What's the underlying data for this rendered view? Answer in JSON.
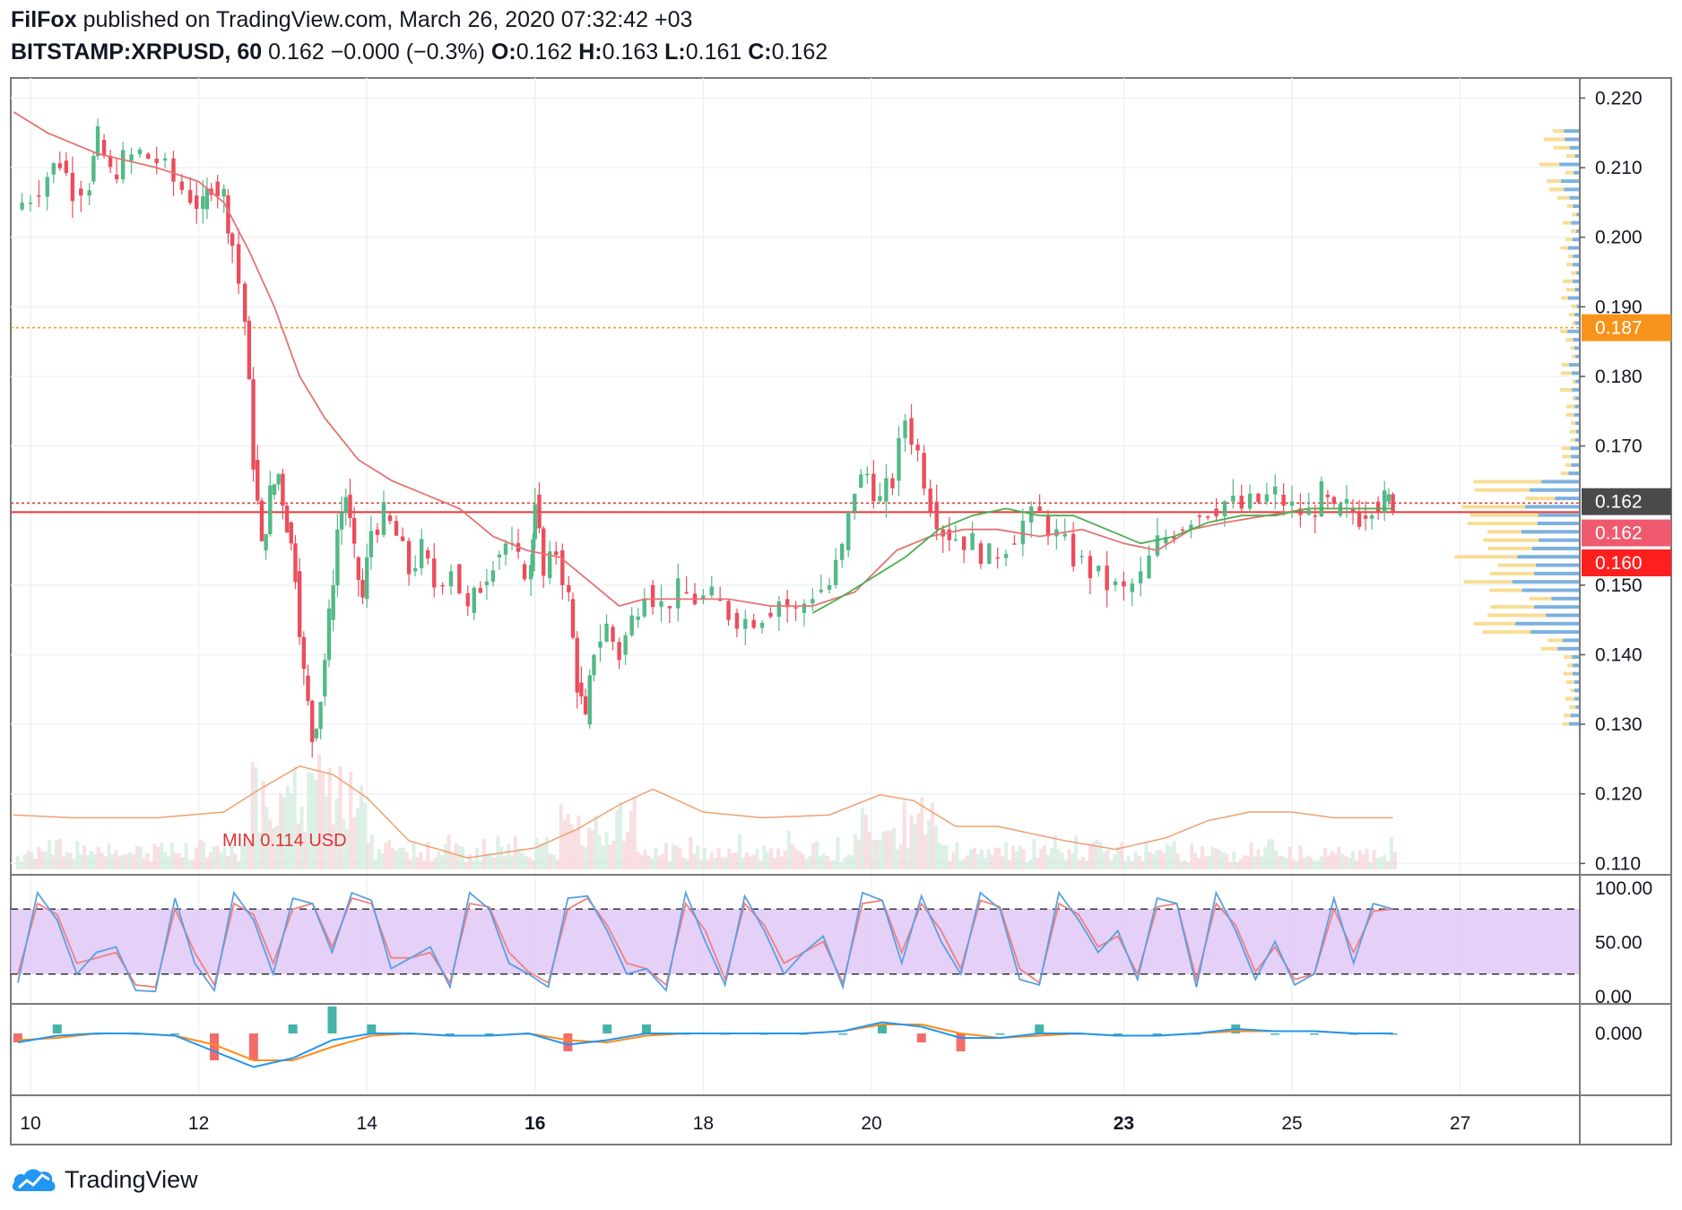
{
  "header": {
    "author": "FilFox",
    "published_text": "published on TradingView.com, March 26, 2020 07:32:42 +03",
    "symbol": "BITSTAMP:XRPUSD, 60",
    "last": "0.162",
    "change": "−0.000 (−0.3%)",
    "o_label": "O:",
    "o_value": "0.162",
    "h_label": "H:",
    "h_value": "0.163",
    "l_label": "L:",
    "l_value": "0.161",
    "c_label": "C:",
    "c_value": "0.162"
  },
  "logo": {
    "text": "TradingView",
    "icon": "tradingview-cloud-icon"
  },
  "chart_data": {
    "type": "candlestick",
    "symbol": "BITSTAMP:XRPUSD",
    "interval": "60",
    "x_tick_labels": [
      {
        "label": "10",
        "day": 10,
        "bold": false
      },
      {
        "label": "12",
        "day": 12,
        "bold": false
      },
      {
        "label": "14",
        "day": 14,
        "bold": false
      },
      {
        "label": "16",
        "day": 16,
        "bold": true
      },
      {
        "label": "18",
        "day": 18,
        "bold": false
      },
      {
        "label": "20",
        "day": 20,
        "bold": false
      },
      {
        "label": "23",
        "day": 23,
        "bold": true
      },
      {
        "label": "25",
        "day": 25,
        "bold": false
      },
      {
        "label": "27",
        "day": 27,
        "bold": false
      }
    ],
    "price_axis": {
      "ticks": [
        "0.220",
        "0.210",
        "0.200",
        "0.190",
        "0.180",
        "0.170",
        "0.150",
        "0.140",
        "0.130",
        "0.120",
        "0.110"
      ],
      "range": [
        0.1085,
        0.2225
      ]
    },
    "price_series": [
      [
        9.8,
        0.204
      ],
      [
        10.0,
        0.206
      ],
      [
        10.2,
        0.209
      ],
      [
        10.35,
        0.211
      ],
      [
        10.5,
        0.207
      ],
      [
        10.7,
        0.208
      ],
      [
        10.8,
        0.214
      ],
      [
        10.95,
        0.209
      ],
      [
        11.1,
        0.211
      ],
      [
        11.3,
        0.212
      ],
      [
        11.5,
        0.211
      ],
      [
        11.7,
        0.208
      ],
      [
        11.9,
        0.206
      ],
      [
        12.05,
        0.204
      ],
      [
        12.15,
        0.208
      ],
      [
        12.3,
        0.206
      ],
      [
        12.4,
        0.199
      ],
      [
        12.55,
        0.188
      ],
      [
        12.65,
        0.168
      ],
      [
        12.75,
        0.155
      ],
      [
        12.85,
        0.163
      ],
      [
        12.95,
        0.166
      ],
      [
        13.05,
        0.159
      ],
      [
        13.15,
        0.152
      ],
      [
        13.25,
        0.137
      ],
      [
        13.35,
        0.128
      ],
      [
        13.45,
        0.134
      ],
      [
        13.55,
        0.145
      ],
      [
        13.65,
        0.158
      ],
      [
        13.75,
        0.163
      ],
      [
        13.85,
        0.154
      ],
      [
        13.95,
        0.148
      ],
      [
        14.05,
        0.158
      ],
      [
        14.2,
        0.16
      ],
      [
        14.35,
        0.157
      ],
      [
        14.5,
        0.152
      ],
      [
        14.65,
        0.155
      ],
      [
        14.8,
        0.15
      ],
      [
        15.0,
        0.153
      ],
      [
        15.2,
        0.146
      ],
      [
        15.35,
        0.15
      ],
      [
        15.5,
        0.154
      ],
      [
        15.65,
        0.156
      ],
      [
        15.8,
        0.153
      ],
      [
        15.95,
        0.152
      ],
      [
        16.0,
        0.163
      ],
      [
        16.1,
        0.151
      ],
      [
        16.25,
        0.155
      ],
      [
        16.4,
        0.148
      ],
      [
        16.5,
        0.136
      ],
      [
        16.6,
        0.13
      ],
      [
        16.7,
        0.141
      ],
      [
        16.85,
        0.144
      ],
      [
        17.0,
        0.14
      ],
      [
        17.15,
        0.145
      ],
      [
        17.3,
        0.15
      ],
      [
        17.5,
        0.147
      ],
      [
        17.7,
        0.149
      ],
      [
        17.9,
        0.148
      ],
      [
        18.1,
        0.148
      ],
      [
        18.3,
        0.146
      ],
      [
        18.5,
        0.145
      ],
      [
        18.7,
        0.146
      ],
      [
        18.9,
        0.148
      ],
      [
        19.1,
        0.146
      ],
      [
        19.3,
        0.149
      ],
      [
        19.5,
        0.15
      ],
      [
        19.65,
        0.155
      ],
      [
        19.8,
        0.164
      ],
      [
        19.95,
        0.166
      ],
      [
        20.1,
        0.162
      ],
      [
        20.25,
        0.165
      ],
      [
        20.4,
        0.174
      ],
      [
        20.55,
        0.169
      ],
      [
        20.7,
        0.162
      ],
      [
        20.85,
        0.158
      ],
      [
        21.0,
        0.157
      ],
      [
        21.2,
        0.156
      ],
      [
        21.4,
        0.154
      ],
      [
        21.6,
        0.156
      ],
      [
        21.8,
        0.159
      ],
      [
        22.0,
        0.16
      ],
      [
        22.2,
        0.157
      ],
      [
        22.4,
        0.154
      ],
      [
        22.6,
        0.152
      ],
      [
        22.8,
        0.15
      ],
      [
        23.0,
        0.149
      ],
      [
        23.2,
        0.151
      ],
      [
        23.4,
        0.156
      ],
      [
        23.6,
        0.158
      ],
      [
        23.8,
        0.16
      ],
      [
        24.0,
        0.161
      ],
      [
        24.2,
        0.162
      ],
      [
        24.4,
        0.161
      ],
      [
        24.6,
        0.162
      ],
      [
        24.8,
        0.163
      ],
      [
        25.0,
        0.161
      ],
      [
        25.2,
        0.16
      ],
      [
        25.35,
        0.163
      ],
      [
        25.5,
        0.16
      ],
      [
        25.65,
        0.161
      ],
      [
        25.8,
        0.16
      ],
      [
        25.95,
        0.162
      ],
      [
        26.1,
        0.162
      ],
      [
        26.2,
        0.162
      ]
    ],
    "moving_average_red": [
      [
        9.8,
        0.218
      ],
      [
        10.2,
        0.215
      ],
      [
        10.8,
        0.212
      ],
      [
        11.5,
        0.21
      ],
      [
        12.0,
        0.208
      ],
      [
        12.3,
        0.205
      ],
      [
        12.6,
        0.198
      ],
      [
        12.9,
        0.19
      ],
      [
        13.2,
        0.18
      ],
      [
        13.5,
        0.174
      ],
      [
        13.9,
        0.168
      ],
      [
        14.3,
        0.165
      ],
      [
        14.7,
        0.163
      ],
      [
        15.1,
        0.161
      ],
      [
        15.5,
        0.157
      ],
      [
        15.9,
        0.155
      ],
      [
        16.3,
        0.154
      ],
      [
        16.7,
        0.15
      ],
      [
        17.0,
        0.147
      ],
      [
        17.3,
        0.148
      ],
      [
        17.8,
        0.148
      ],
      [
        18.3,
        0.148
      ],
      [
        18.8,
        0.147
      ],
      [
        19.3,
        0.147
      ],
      [
        19.8,
        0.149
      ],
      [
        20.3,
        0.155
      ],
      [
        20.7,
        0.157
      ],
      [
        21.1,
        0.158
      ],
      [
        21.5,
        0.158
      ],
      [
        22.0,
        0.157
      ],
      [
        22.5,
        0.158
      ],
      [
        23.0,
        0.156
      ],
      [
        23.4,
        0.155
      ],
      [
        23.8,
        0.158
      ],
      [
        24.2,
        0.159
      ],
      [
        24.7,
        0.16
      ],
      [
        25.2,
        0.161
      ],
      [
        25.6,
        0.161
      ],
      [
        26.0,
        0.161
      ],
      [
        26.2,
        0.161
      ]
    ],
    "moving_average_green": [
      [
        19.3,
        0.146
      ],
      [
        19.6,
        0.148
      ],
      [
        20.0,
        0.151
      ],
      [
        20.4,
        0.154
      ],
      [
        20.8,
        0.158
      ],
      [
        21.2,
        0.16
      ],
      [
        21.6,
        0.161
      ],
      [
        22.0,
        0.16
      ],
      [
        22.4,
        0.16
      ],
      [
        22.8,
        0.158
      ],
      [
        23.2,
        0.156
      ],
      [
        23.6,
        0.157
      ],
      [
        24.0,
        0.159
      ],
      [
        24.4,
        0.16
      ],
      [
        24.8,
        0.16
      ],
      [
        25.2,
        0.161
      ],
      [
        25.6,
        0.161
      ],
      [
        26.0,
        0.161
      ],
      [
        26.2,
        0.161
      ]
    ],
    "horizontal_levels": [
      {
        "price": 0.187,
        "style": "dotted",
        "color": "#f0a000",
        "label": "0.187"
      },
      {
        "price": 0.1605,
        "style": "solid",
        "color": "#e53935",
        "label": "0.160"
      },
      {
        "price": 0.1618,
        "style": "dotted",
        "color": "#e53935"
      }
    ],
    "price_labels": [
      {
        "text": "0.187",
        "price": 0.187,
        "bg": "#f7931a"
      },
      {
        "text": "0.162",
        "price": 0.162,
        "bg": "#4a4a4a"
      },
      {
        "text": "0.162",
        "price": 0.1575,
        "bg": "#ef5a6f"
      },
      {
        "text": "0.160",
        "price": 0.1532,
        "bg": "#ff1f1f"
      }
    ],
    "volume_annotation": "MIN 0.114 USD",
    "stoch_rsi": {
      "axis_ticks": [
        "100.00",
        "50.00",
        "0.00"
      ],
      "upper_band": 80,
      "lower_band": 20,
      "k_series": [
        12,
        95,
        70,
        20,
        40,
        45,
        5,
        4,
        90,
        30,
        5,
        95,
        70,
        20,
        90,
        85,
        40,
        95,
        88,
        25,
        35,
        45,
        8,
        95,
        80,
        30,
        20,
        8,
        90,
        92,
        60,
        20,
        25,
        5,
        95,
        50,
        10,
        92,
        60,
        20,
        40,
        55,
        8,
        95,
        88,
        30,
        92,
        50,
        20,
        95,
        80,
        15,
        10,
        95,
        70,
        40,
        60,
        15,
        90,
        85,
        8,
        95,
        60,
        15,
        50,
        10,
        20,
        90,
        30,
        85,
        80
      ],
      "d_series": [
        20,
        85,
        75,
        30,
        35,
        40,
        10,
        8,
        80,
        40,
        10,
        85,
        75,
        30,
        80,
        85,
        45,
        90,
        85,
        35,
        35,
        40,
        12,
        85,
        82,
        40,
        22,
        12,
        80,
        90,
        65,
        30,
        25,
        10,
        85,
        60,
        15,
        85,
        65,
        30,
        40,
        50,
        12,
        85,
        88,
        40,
        85,
        60,
        25,
        88,
        82,
        25,
        12,
        85,
        75,
        45,
        55,
        20,
        82,
        85,
        15,
        85,
        65,
        22,
        45,
        15,
        20,
        80,
        40,
        78,
        80
      ]
    },
    "macd": {
      "axis_ticks": [
        "0.000"
      ],
      "macd_series": [
        -0.004,
        -0.001,
        0.0,
        0.0,
        -0.001,
        -0.008,
        -0.015,
        -0.011,
        -0.003,
        0.0,
        0.0,
        -0.001,
        -0.001,
        0.0,
        -0.005,
        -0.003,
        0.0,
        0.0,
        0.0,
        0.0,
        0.0,
        0.001,
        0.005,
        0.003,
        -0.002,
        -0.002,
        0.0,
        0.0,
        -0.001,
        -0.001,
        0.0,
        0.002,
        0.001,
        0.001,
        0.0,
        0.0
      ],
      "signal_series": [
        -0.003,
        -0.002,
        0.0,
        0.0,
        -0.001,
        -0.005,
        -0.012,
        -0.012,
        -0.006,
        -0.001,
        0.0,
        -0.001,
        -0.001,
        0.0,
        -0.003,
        -0.004,
        -0.001,
        0.0,
        0.0,
        0.0,
        0.0,
        0.001,
        0.004,
        0.004,
        0.0,
        -0.002,
        -0.001,
        0.0,
        -0.001,
        -0.001,
        0.0,
        0.001,
        0.001,
        0.001,
        0.0,
        0.0
      ]
    },
    "colors": {
      "up": "#53b987",
      "down": "#eb4d5c",
      "ma_red": "#e57373",
      "ma_green": "#4caf50",
      "stoch_k": "#5aa0e0",
      "stoch_d": "#f08080",
      "stoch_band": "#e1c8f7",
      "macd": "#2196f3",
      "signal": "#ff8c1a",
      "hist_up": "#26a69a",
      "hist_down": "#ef5350"
    },
    "grid": true
  }
}
